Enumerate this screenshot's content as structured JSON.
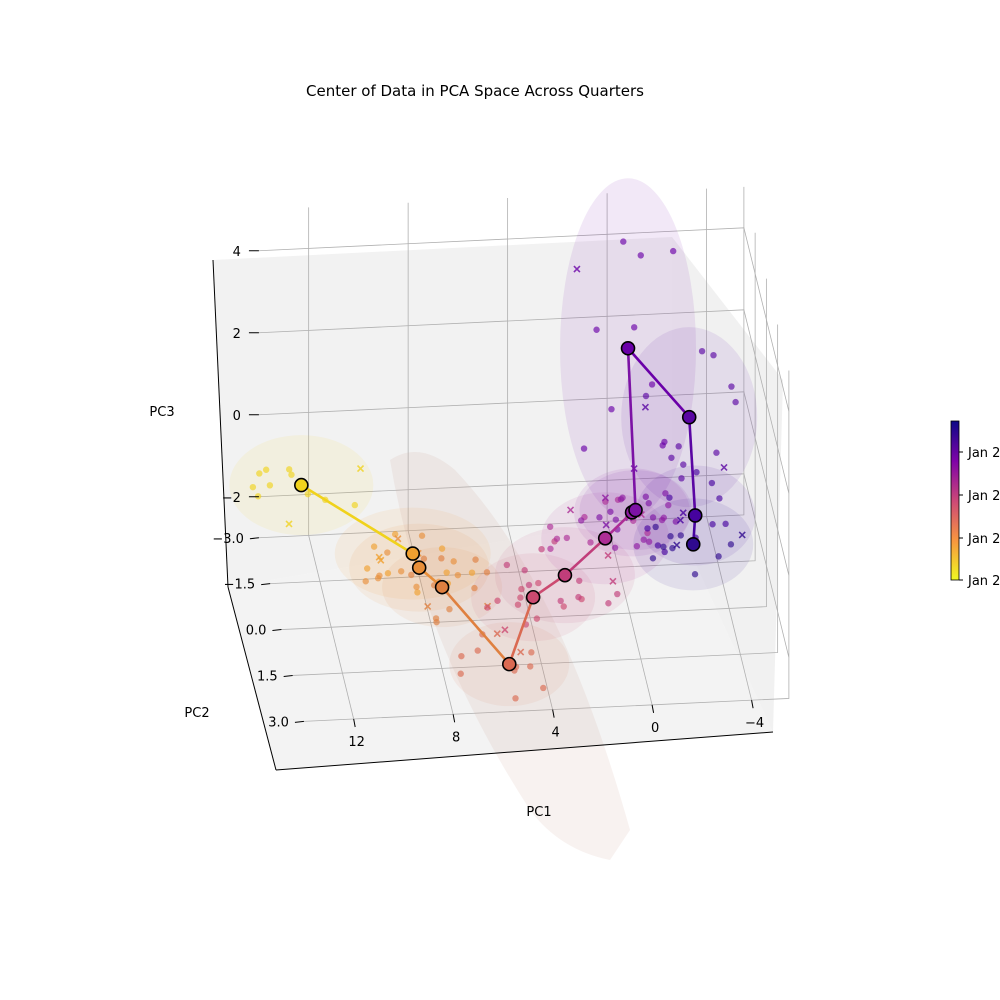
{
  "chart_data": {
    "type": "scatter",
    "projection": "3d",
    "title": "Center of Data in PCA Space Across Quarters",
    "xlabel": "PC1",
    "ylabel": "PC2",
    "zlabel": "PC3",
    "xlim": [
      -5.5,
      14
    ],
    "ylim": [
      -3.0,
      3.0
    ],
    "zlim": [
      -3.0,
      5.0
    ],
    "x_ticks": [
      "12",
      "8",
      "4",
      "0",
      "−4"
    ],
    "y_ticks": [
      "−3.0",
      "−1.5",
      "0.0",
      "1.5",
      "3.0"
    ],
    "z_ticks": [
      "4",
      "2",
      "0",
      "−2"
    ],
    "grid": true,
    "colormap": "plasma",
    "colorbar": {
      "ticks": [
        "Jan 2",
        "Jan 2",
        "Jan 2",
        "Jan 2"
      ]
    },
    "centroids": [
      {
        "pc1": 13.2,
        "pc2": 0.0,
        "pc3": 0.5,
        "color": "#f0d21c"
      },
      {
        "pc1": 8.6,
        "pc2": -0.4,
        "pc3": -1.6,
        "color": "#f0a030"
      },
      {
        "pc1": 8.4,
        "pc2": -0.2,
        "pc3": -1.8,
        "color": "#e88f3a"
      },
      {
        "pc1": 7.6,
        "pc2": 0.2,
        "pc3": -2.0,
        "color": "#df8040"
      },
      {
        "pc1": 5.2,
        "pc2": 1.2,
        "pc3": -3.2,
        "color": "#da6a52"
      },
      {
        "pc1": 4.0,
        "pc2": 0.4,
        "pc3": -2.2,
        "color": "#cc4a70"
      },
      {
        "pc1": 2.6,
        "pc2": 0.0,
        "pc3": -2.0,
        "color": "#c13d7a"
      },
      {
        "pc1": 0.8,
        "pc2": -0.6,
        "pc3": -1.6,
        "color": "#ad2e96"
      },
      {
        "pc1": -0.4,
        "pc2": -1.0,
        "pc3": -1.3,
        "color": "#8f1ca3"
      },
      {
        "pc1": -0.6,
        "pc2": -1.2,
        "pc3": -1.4,
        "color": "#7c12a5"
      },
      {
        "pc1": -0.6,
        "pc2": -2.2,
        "pc3": 1.8,
        "color": "#6a00a8"
      },
      {
        "pc1": -3.0,
        "pc2": -2.0,
        "pc3": 0.2,
        "color": "#5a06a3"
      },
      {
        "pc1": -3.0,
        "pc2": -1.2,
        "pc3": -1.6,
        "color": "#46039f"
      },
      {
        "pc1": -2.8,
        "pc2": -0.8,
        "pc3": -2.0,
        "color": "#2f0a8f"
      }
    ]
  }
}
